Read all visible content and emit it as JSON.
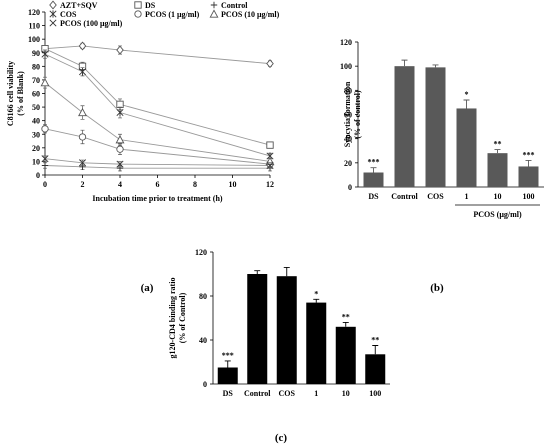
{
  "panel_labels": [
    "(a)",
    "(b)",
    "(c)"
  ],
  "chart_data": [
    {
      "type": "line",
      "panel": "(a)",
      "title": "",
      "xlabel": "Incubation time prior to treatment (h)",
      "ylabel": "C8166 cell viability (% of Blank)",
      "ylabel_lines": [
        "C8166 cell viability",
        "(% of Blank)"
      ],
      "x": [
        0,
        2,
        4,
        12
      ],
      "xlim": [
        0,
        12
      ],
      "xticks": [
        0,
        2,
        4,
        6,
        8,
        10,
        12
      ],
      "ylim": [
        0,
        120
      ],
      "yticks": [
        0,
        10,
        20,
        30,
        40,
        50,
        60,
        70,
        80,
        90,
        100,
        110,
        120
      ],
      "grid": false,
      "legend_position": "top",
      "series": [
        {
          "name": "AZT+SQV",
          "marker": "diamond",
          "values": [
            93,
            95,
            92,
            82
          ],
          "errors": [
            2,
            2,
            3,
            2
          ]
        },
        {
          "name": "DS",
          "marker": "square",
          "values": [
            93,
            80,
            52,
            22
          ],
          "errors": [
            2,
            3,
            4,
            2
          ]
        },
        {
          "name": "Control",
          "marker": "plus",
          "values": [
            7,
            6,
            5,
            5
          ],
          "errors": [
            2,
            2,
            2,
            2
          ]
        },
        {
          "name": "COS",
          "marker": "star",
          "values": [
            89,
            76,
            46,
            14
          ],
          "errors": [
            3,
            3,
            4,
            2
          ]
        },
        {
          "name": "PCOS (1 μg/ml)",
          "marker": "circle",
          "values": [
            34,
            28,
            19,
            8
          ],
          "errors": [
            3,
            5,
            4,
            2
          ]
        },
        {
          "name": "PCOS (10 μg/ml)",
          "marker": "triangle",
          "values": [
            68,
            46,
            26,
            10
          ],
          "errors": [
            4,
            5,
            4,
            2
          ]
        },
        {
          "name": "PCOS (100 μg/ml)",
          "marker": "x",
          "values": [
            12,
            9,
            8,
            7
          ],
          "errors": [
            2,
            2,
            2,
            2
          ]
        }
      ]
    },
    {
      "type": "bar",
      "panel": "(b)",
      "title": "",
      "xlabel": "",
      "ylabel": "Syncytia formation (% of control)",
      "ylabel_lines": [
        "Syncytia formation",
        "(% of control)"
      ],
      "categories": [
        "DS",
        "Control",
        "COS",
        "1",
        "10",
        "100"
      ],
      "values": [
        12,
        100,
        99,
        65,
        28,
        17
      ],
      "errors": [
        4,
        5,
        2,
        7,
        3,
        5
      ],
      "annotations": [
        "***",
        "",
        "",
        "*",
        "**",
        "***"
      ],
      "group_label": "PCOS (μg/ml)",
      "ylim": [
        0,
        120
      ],
      "yticks": [
        0,
        20,
        40,
        60,
        80,
        100,
        120
      ],
      "grid": false
    },
    {
      "type": "bar",
      "panel": "(c)",
      "title": "",
      "xlabel": "",
      "ylabel": "g120-CD4 binding ratio (% of Control)",
      "ylabel_lines": [
        "g120-CD4 binding ratio",
        "(% of Control)"
      ],
      "categories": [
        "DS",
        "Control",
        "COS",
        "1",
        "10",
        "100"
      ],
      "values": [
        15,
        100,
        98,
        74,
        52,
        27
      ],
      "errors": [
        6,
        3,
        8,
        3,
        4,
        8
      ],
      "annotations": [
        "***",
        "",
        "",
        "*",
        "**",
        "**"
      ],
      "ylim": [
        0,
        120
      ],
      "yticks": [
        0,
        40,
        80,
        120
      ],
      "grid": false
    }
  ]
}
